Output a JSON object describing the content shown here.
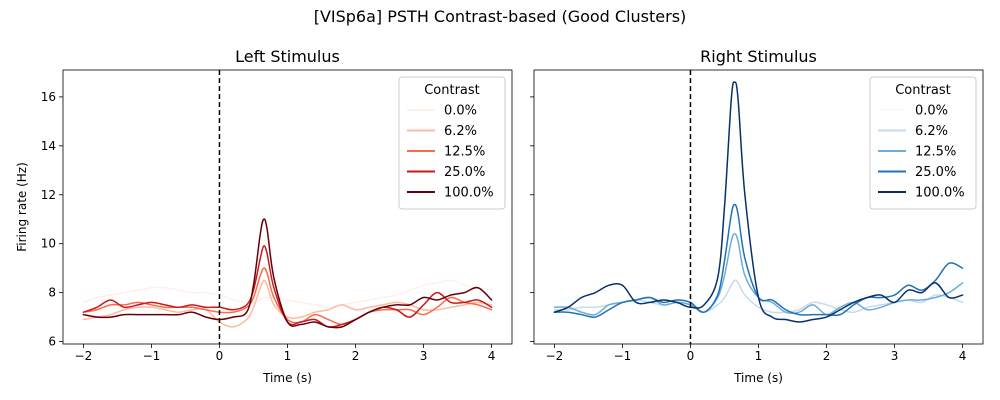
{
  "figure": {
    "suptitle": "[VISp6a] PSTH Contrast-based (Good Clusters)"
  },
  "chart_data": [
    {
      "type": "line",
      "title": "Left Stimulus",
      "xlabel": "Time (s)",
      "ylabel": "Firing rate (Hz)",
      "xlim": [
        -2.3,
        4.3
      ],
      "ylim": [
        5.9,
        17.1
      ],
      "xticks": [
        -2,
        -1,
        0,
        1,
        2,
        3,
        4
      ],
      "yticks": [
        6,
        8,
        10,
        12,
        14,
        16
      ],
      "stimulus_onset": 0,
      "legend": {
        "title": "Contrast",
        "position": "top-right"
      },
      "x": [
        -2.0,
        -1.8,
        -1.6,
        -1.4,
        -1.2,
        -1.0,
        -0.8,
        -0.6,
        -0.4,
        -0.2,
        0.0,
        0.2,
        0.4,
        0.5,
        0.6,
        0.65,
        0.7,
        0.8,
        1.0,
        1.2,
        1.4,
        1.6,
        1.8,
        2.0,
        2.2,
        2.4,
        2.6,
        2.8,
        3.0,
        3.2,
        3.4,
        3.6,
        3.8,
        4.0
      ],
      "series": [
        {
          "name": "0.0%",
          "color": "#fff0e8",
          "values": [
            7.6,
            7.8,
            7.9,
            8.0,
            8.1,
            8.2,
            8.2,
            8.1,
            8.0,
            8.0,
            7.9,
            7.7,
            7.6,
            7.6,
            7.7,
            7.8,
            7.8,
            7.8,
            7.7,
            7.6,
            7.5,
            7.4,
            7.5,
            7.6,
            7.7,
            7.8,
            7.9,
            8.1,
            8.3,
            8.4,
            8.5,
            8.3,
            8.2,
            8.1
          ]
        },
        {
          "name": "6.2%",
          "color": "#fcbba1",
          "values": [
            6.9,
            7.0,
            7.1,
            7.3,
            7.4,
            7.4,
            7.3,
            7.2,
            7.3,
            7.3,
            6.8,
            6.6,
            6.9,
            7.4,
            8.2,
            8.5,
            8.3,
            7.5,
            7.0,
            7.0,
            7.2,
            7.3,
            7.5,
            7.3,
            7.4,
            7.5,
            7.6,
            7.5,
            7.3,
            7.3,
            7.4,
            7.5,
            7.6,
            7.5
          ]
        },
        {
          "name": "12.5%",
          "color": "#fb6a4a",
          "values": [
            7.2,
            7.3,
            7.5,
            7.5,
            7.6,
            7.5,
            7.4,
            7.4,
            7.4,
            7.3,
            7.2,
            7.2,
            7.4,
            7.8,
            8.7,
            9.0,
            8.8,
            7.8,
            6.9,
            6.8,
            7.1,
            6.9,
            6.7,
            6.9,
            7.2,
            7.3,
            7.3,
            7.3,
            7.1,
            7.4,
            7.8,
            7.6,
            7.5,
            7.3
          ]
        },
        {
          "name": "25.0%",
          "color": "#cb181d",
          "values": [
            7.2,
            7.4,
            7.7,
            7.4,
            7.5,
            7.6,
            7.5,
            7.4,
            7.5,
            7.4,
            7.4,
            7.3,
            7.5,
            8.1,
            9.4,
            9.9,
            9.6,
            8.2,
            6.8,
            6.8,
            6.9,
            6.6,
            6.7,
            6.9,
            7.2,
            7.4,
            7.3,
            7.0,
            7.5,
            8.0,
            7.6,
            7.6,
            7.7,
            7.4
          ]
        },
        {
          "name": "100.0%",
          "color": "#67000d",
          "values": [
            7.1,
            7.0,
            7.0,
            7.1,
            7.1,
            7.1,
            7.1,
            7.1,
            7.2,
            7.0,
            6.9,
            7.0,
            7.2,
            8.3,
            10.4,
            11.0,
            10.6,
            8.6,
            6.8,
            6.7,
            6.8,
            6.6,
            6.6,
            6.9,
            7.2,
            7.4,
            7.5,
            7.5,
            7.8,
            7.7,
            7.9,
            8.0,
            8.2,
            7.7
          ]
        }
      ]
    },
    {
      "type": "line",
      "title": "Right Stimulus",
      "xlabel": "Time (s)",
      "ylabel": "",
      "xlim": [
        -2.3,
        4.3
      ],
      "ylim": [
        5.9,
        17.1
      ],
      "xticks": [
        -2,
        -1,
        0,
        1,
        2,
        3,
        4
      ],
      "yticks": [
        6,
        8,
        10,
        12,
        14,
        16
      ],
      "stimulus_onset": 0,
      "legend": {
        "title": "Contrast",
        "position": "top-right"
      },
      "x": [
        -2.0,
        -1.8,
        -1.6,
        -1.4,
        -1.2,
        -1.0,
        -0.8,
        -0.6,
        -0.4,
        -0.2,
        0.0,
        0.2,
        0.4,
        0.5,
        0.6,
        0.65,
        0.7,
        0.8,
        1.0,
        1.2,
        1.4,
        1.6,
        1.8,
        2.0,
        2.2,
        2.4,
        2.6,
        2.8,
        3.0,
        3.2,
        3.4,
        3.6,
        3.8,
        4.0
      ],
      "series": [
        {
          "name": "0.0%",
          "color": "#f7fbff",
          "values": [
            7.6,
            7.8,
            7.9,
            8.0,
            8.1,
            8.2,
            8.2,
            8.1,
            8.0,
            8.0,
            7.9,
            7.7,
            7.6,
            7.6,
            7.7,
            7.8,
            7.8,
            7.8,
            7.7,
            7.6,
            7.5,
            7.4,
            7.5,
            7.6,
            7.7,
            7.8,
            7.9,
            8.1,
            8.3,
            8.4,
            8.5,
            8.3,
            8.2,
            8.1
          ]
        },
        {
          "name": "6.2%",
          "color": "#c6dbef",
          "values": [
            7.3,
            7.3,
            7.4,
            7.4,
            7.5,
            7.6,
            7.7,
            7.6,
            7.5,
            7.6,
            7.5,
            7.2,
            7.5,
            7.8,
            8.3,
            8.5,
            8.4,
            7.9,
            7.4,
            7.2,
            7.2,
            7.3,
            7.6,
            7.5,
            7.3,
            7.2,
            7.4,
            7.5,
            7.6,
            7.7,
            7.6,
            7.9,
            7.8,
            7.6
          ]
        },
        {
          "name": "12.5%",
          "color": "#6baed6",
          "values": [
            7.4,
            7.4,
            7.2,
            7.1,
            7.5,
            7.6,
            7.7,
            7.8,
            7.5,
            7.6,
            7.5,
            7.2,
            7.8,
            8.7,
            10.1,
            10.4,
            10.1,
            8.7,
            7.8,
            7.6,
            7.2,
            7.2,
            7.5,
            7.1,
            7.4,
            7.6,
            7.3,
            7.4,
            7.6,
            7.7,
            7.7,
            7.8,
            8.0,
            8.4
          ]
        },
        {
          "name": "25.0%",
          "color": "#2171b5",
          "values": [
            7.2,
            7.2,
            7.1,
            7.0,
            7.3,
            7.6,
            7.7,
            7.8,
            7.6,
            7.7,
            7.6,
            7.2,
            7.9,
            9.3,
            11.2,
            11.6,
            11.2,
            9.4,
            7.8,
            7.7,
            7.3,
            7.1,
            7.1,
            7.1,
            7.1,
            7.5,
            7.8,
            7.8,
            7.9,
            8.3,
            8.1,
            8.5,
            9.2,
            9.0
          ]
        },
        {
          "name": "100.0%",
          "color": "#08306b",
          "values": [
            7.2,
            7.4,
            7.8,
            8.0,
            8.3,
            8.3,
            7.6,
            7.6,
            7.7,
            7.6,
            7.4,
            7.5,
            8.6,
            11.5,
            15.9,
            16.6,
            15.9,
            12.0,
            7.8,
            7.0,
            6.9,
            6.8,
            6.9,
            7.0,
            7.3,
            7.6,
            7.8,
            7.9,
            7.6,
            8.1,
            8.0,
            8.4,
            7.8,
            7.9
          ]
        }
      ]
    }
  ]
}
